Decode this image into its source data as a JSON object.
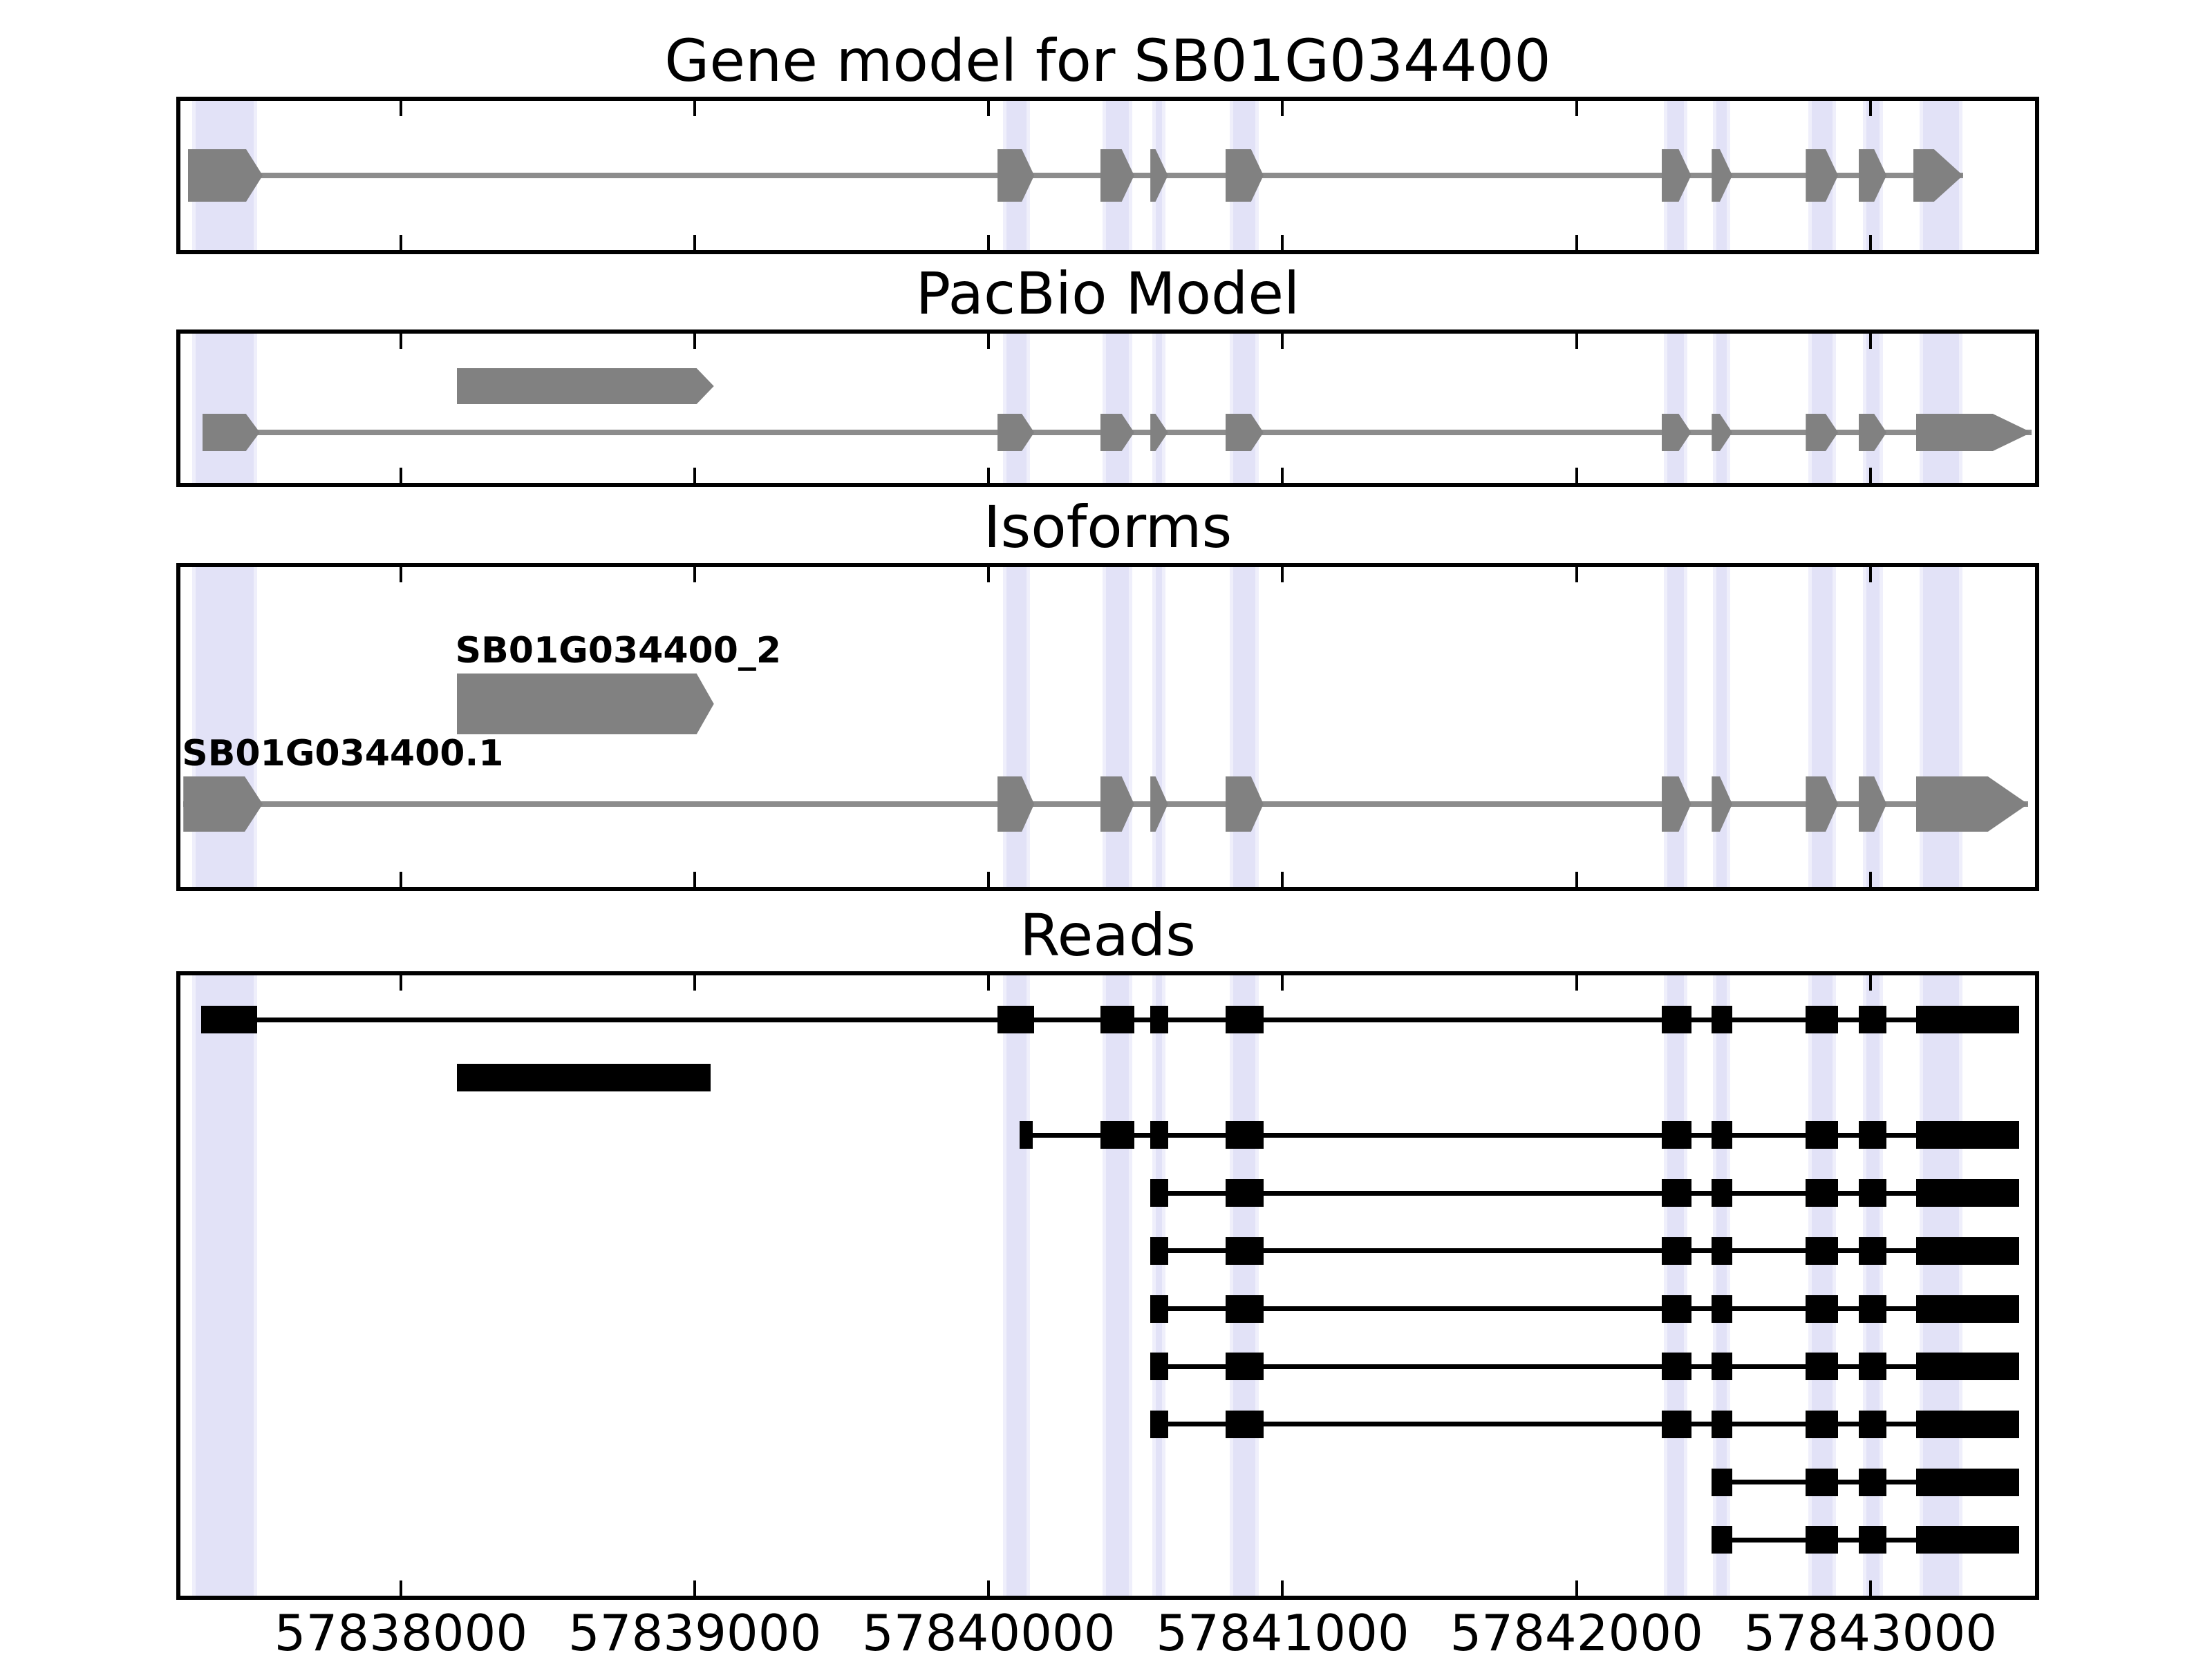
{
  "chart_data": {
    "type": "gene-model-tracks",
    "x_axis": {
      "min": 57837250,
      "max": 57843560,
      "ticks": [
        {
          "value": 57838000,
          "label": "57838000"
        },
        {
          "value": 57839000,
          "label": "57839000"
        },
        {
          "value": 57840000,
          "label": "57840000"
        },
        {
          "value": 57841000,
          "label": "57841000"
        },
        {
          "value": 57842000,
          "label": "57842000"
        },
        {
          "value": 57843000,
          "label": "57843000"
        }
      ]
    },
    "colors": {
      "exon_gray": "#818181",
      "intron_line_gray": "#8c8c8c",
      "read_black": "#000000",
      "highlight_lavender": "#e2e2f7",
      "highlight_edge": "#efeffb",
      "panel_border": "#000000",
      "background": "#ffffff",
      "text": "#000000"
    },
    "highlight_regions": [
      [
        57837290,
        57837512
      ],
      [
        57840049,
        57840141
      ],
      [
        57840388,
        57840489
      ],
      [
        57840557,
        57840602
      ],
      [
        57840821,
        57840919
      ],
      [
        57842297,
        57842376
      ],
      [
        57842464,
        57842523
      ],
      [
        57842789,
        57842883
      ],
      [
        57842974,
        57843042
      ],
      [
        57843167,
        57843314
      ]
    ],
    "panels": [
      {
        "id": "gene_model",
        "title": "Gene model for SB01G034400",
        "lanes": [
          {
            "kind": "transcript",
            "tip": 18,
            "tip_first": 24,
            "tip_last": 42,
            "exons": [
              [
                57837275,
                57837530
              ],
              [
                57840030,
                57840155
              ],
              [
                57840380,
                57840495
              ],
              [
                57840550,
                57840610
              ],
              [
                57840805,
                57840935
              ],
              [
                57842290,
                57842390
              ],
              [
                57842460,
                57842530
              ],
              [
                57842780,
                57842890
              ],
              [
                57842960,
                57843055
              ],
              [
                57843145,
                57843315
              ]
            ]
          }
        ]
      },
      {
        "id": "pacbio",
        "title": "PacBio Model",
        "lanes": [
          {
            "kind": "block",
            "tip": 25,
            "exons": [
              [
                57838190,
                57839065
              ]
            ]
          },
          {
            "kind": "transcript",
            "tip": 18,
            "tip_first": 20,
            "tip_last": 56,
            "exons": [
              [
                57837325,
                57837520
              ],
              [
                57840030,
                57840155
              ],
              [
                57840380,
                57840495
              ],
              [
                57840550,
                57840610
              ],
              [
                57840805,
                57840935
              ],
              [
                57842290,
                57842390
              ],
              [
                57842460,
                57842530
              ],
              [
                57842780,
                57842890
              ],
              [
                57842960,
                57843055
              ],
              [
                57843155,
                57843548
              ]
            ]
          }
        ]
      },
      {
        "id": "isoforms",
        "title": "Isoforms",
        "lanes": [
          {
            "kind": "block",
            "label": "SB01G034400_2",
            "tip": 25,
            "exons": [
              [
                57838190,
                57839065
              ]
            ]
          },
          {
            "kind": "transcript",
            "label": "SB01G034400.1",
            "tip": 18,
            "tip_first": 26,
            "tip_last": 58,
            "exons": [
              [
                57837260,
                57837530
              ],
              [
                57840030,
                57840155
              ],
              [
                57840380,
                57840495
              ],
              [
                57840550,
                57840610
              ],
              [
                57840805,
                57840935
              ],
              [
                57842290,
                57842390
              ],
              [
                57842460,
                57842530
              ],
              [
                57842780,
                57842890
              ],
              [
                57842960,
                57843055
              ],
              [
                57843155,
                57843536
              ]
            ]
          }
        ]
      },
      {
        "id": "reads",
        "title": "Reads",
        "lanes": [
          {
            "kind": "read",
            "exons": [
              [
                57837320,
                57837510
              ],
              [
                57840030,
                57840155
              ],
              [
                57840380,
                57840495
              ],
              [
                57840550,
                57840610
              ],
              [
                57840805,
                57840935
              ],
              [
                57842290,
                57842390
              ],
              [
                57842460,
                57842530
              ],
              [
                57842780,
                57842890
              ],
              [
                57842960,
                57843055
              ],
              [
                57843155,
                57843505
              ]
            ]
          },
          {
            "kind": "read",
            "exons": [
              [
                57838190,
                57839055
              ]
            ]
          },
          {
            "kind": "read",
            "exons": [
              [
                57840105,
                57840150
              ],
              [
                57840380,
                57840495
              ],
              [
                57840550,
                57840610
              ],
              [
                57840805,
                57840935
              ],
              [
                57842290,
                57842390
              ],
              [
                57842460,
                57842530
              ],
              [
                57842780,
                57842890
              ],
              [
                57842960,
                57843055
              ],
              [
                57843155,
                57843505
              ]
            ]
          },
          {
            "kind": "read",
            "exons": [
              [
                57840550,
                57840610
              ],
              [
                57840805,
                57840935
              ],
              [
                57842290,
                57842390
              ],
              [
                57842460,
                57842530
              ],
              [
                57842780,
                57842890
              ],
              [
                57842960,
                57843055
              ],
              [
                57843155,
                57843505
              ]
            ]
          },
          {
            "kind": "read",
            "exons": [
              [
                57840550,
                57840610
              ],
              [
                57840805,
                57840935
              ],
              [
                57842290,
                57842390
              ],
              [
                57842460,
                57842530
              ],
              [
                57842780,
                57842890
              ],
              [
                57842960,
                57843055
              ],
              [
                57843155,
                57843505
              ]
            ]
          },
          {
            "kind": "read",
            "exons": [
              [
                57840550,
                57840610
              ],
              [
                57840805,
                57840935
              ],
              [
                57842290,
                57842390
              ],
              [
                57842460,
                57842530
              ],
              [
                57842780,
                57842890
              ],
              [
                57842960,
                57843055
              ],
              [
                57843155,
                57843505
              ]
            ]
          },
          {
            "kind": "read",
            "exons": [
              [
                57840550,
                57840610
              ],
              [
                57840805,
                57840935
              ],
              [
                57842290,
                57842390
              ],
              [
                57842460,
                57842530
              ],
              [
                57842780,
                57842890
              ],
              [
                57842960,
                57843055
              ],
              [
                57843155,
                57843505
              ]
            ]
          },
          {
            "kind": "read",
            "exons": [
              [
                57840550,
                57840610
              ],
              [
                57840805,
                57840935
              ],
              [
                57842290,
                57842390
              ],
              [
                57842460,
                57842530
              ],
              [
                57842780,
                57842890
              ],
              [
                57842960,
                57843055
              ],
              [
                57843155,
                57843505
              ]
            ]
          },
          {
            "kind": "read",
            "exons": [
              [
                57842460,
                57842530
              ],
              [
                57842780,
                57842890
              ],
              [
                57842960,
                57843055
              ],
              [
                57843155,
                57843505
              ]
            ]
          },
          {
            "kind": "read",
            "exons": [
              [
                57842460,
                57842530
              ],
              [
                57842780,
                57842890
              ],
              [
                57842960,
                57843055
              ],
              [
                57843155,
                57843505
              ]
            ]
          }
        ]
      }
    ]
  }
}
